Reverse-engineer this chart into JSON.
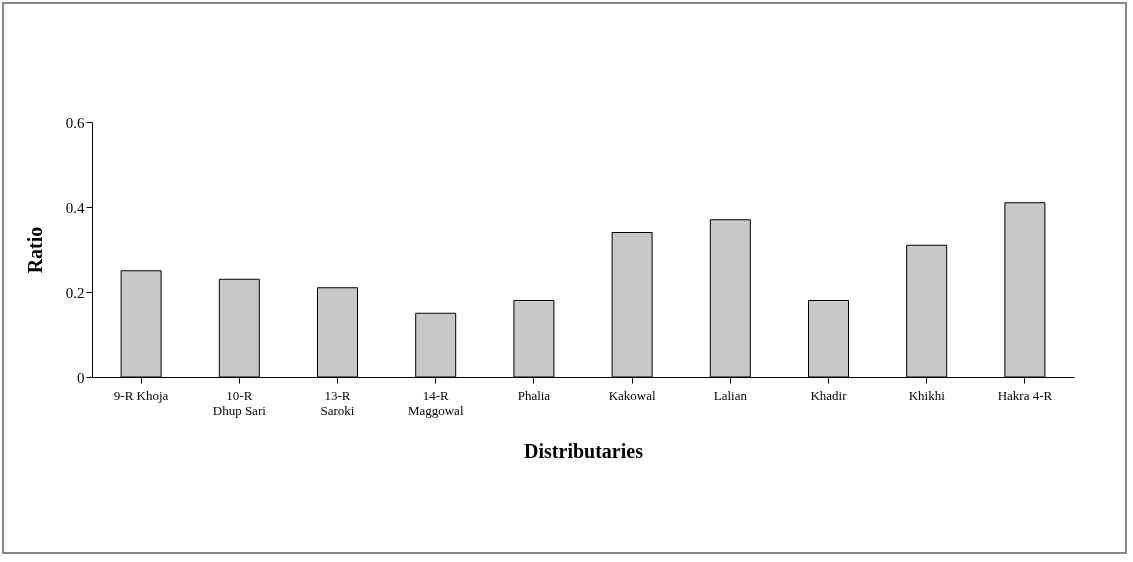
{
  "chart_data": {
    "type": "bar",
    "xlabel": "Distributaries",
    "ylabel": "Ratio",
    "categories": [
      "9-R Khoja",
      "10-R\nDhup Sari",
      "13-R\nSaroki",
      "14-R\nMaggowal",
      "Phalia",
      "Kakowal",
      "Lalian",
      "Khadir",
      "Khikhi",
      "Hakra 4-R"
    ],
    "values": [
      0.25,
      0.23,
      0.21,
      0.15,
      0.18,
      0.34,
      0.37,
      0.18,
      0.31,
      0.41
    ],
    "color": "#c8c8c8",
    "ylim": [
      0,
      0.6
    ],
    "yticks": [
      0,
      0.2,
      0.4,
      0.6
    ],
    "grid": false
  }
}
